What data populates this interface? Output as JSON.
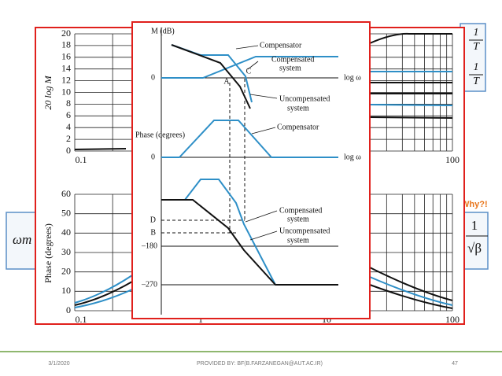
{
  "slide": {
    "left_box": "ωm",
    "right_box": {
      "numerator": "1",
      "denominator": "√β"
    },
    "top_right_box": [
      "1",
      "T",
      "1",
      "T"
    ],
    "note": "Why?!",
    "back_figure": {
      "magnitude_axis_label": "20 log M",
      "magnitude_ticks": [
        "20",
        "18",
        "16",
        "14",
        "12",
        "10",
        "8",
        "6",
        "4",
        "2",
        "0"
      ],
      "magnitude_x_ticks": [
        "0.1",
        "100"
      ],
      "phase_axis_label": "Phase (degrees)",
      "phase_ticks": [
        "60",
        "50",
        "40",
        "30",
        "20",
        "10",
        "0"
      ],
      "phase_x_ticks": [
        "0.1",
        "1",
        "10",
        "100"
      ]
    },
    "front_figure": {
      "magnitude_label": "M (dB)",
      "magnitude_zero": "0",
      "compensator": "Compensator",
      "compensated": [
        "Compensated",
        "system"
      ],
      "uncompensated": [
        "Uncompensated",
        "system"
      ],
      "point_a": "A",
      "point_c": "C",
      "x_label": "log ω",
      "phase_label": "Phase (degrees)",
      "phase_zero": "0",
      "phase_compensator": "Compensator",
      "phase_x_label": "log ω",
      "phase_compensated": [
        "Compensated",
        "system"
      ],
      "phase_uncompensated": [
        "Uncompensated",
        "system"
      ],
      "point_d": "D",
      "point_b": "B",
      "minus_180": "–180",
      "minus_270": "–270"
    }
  },
  "footer": {
    "date": "3/1/2020",
    "provider": "PROVIDED BY: BF(B.FARZANEGAN@AUT.AC.IR)",
    "page": "47"
  }
}
